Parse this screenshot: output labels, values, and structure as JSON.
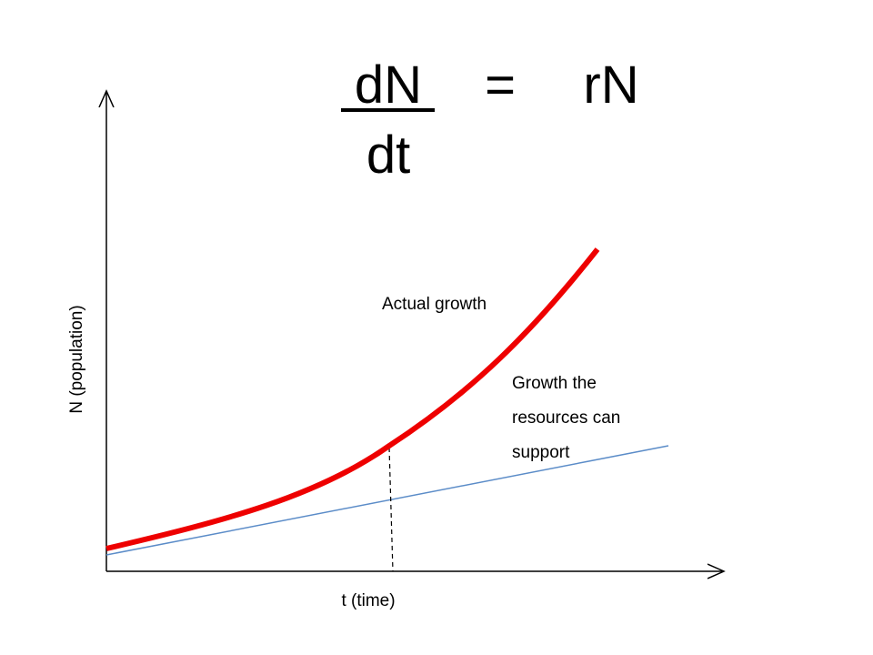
{
  "equation": {
    "numerator": "dN",
    "denominator": "dt",
    "operator": "=",
    "rhs": "rN"
  },
  "axes": {
    "y_label": "N (population)",
    "x_label": "t (time)"
  },
  "curves": [
    {
      "label": "Actual growth"
    },
    {
      "label_lines": [
        "Growth the",
        "resources can",
        "support"
      ]
    }
  ]
}
